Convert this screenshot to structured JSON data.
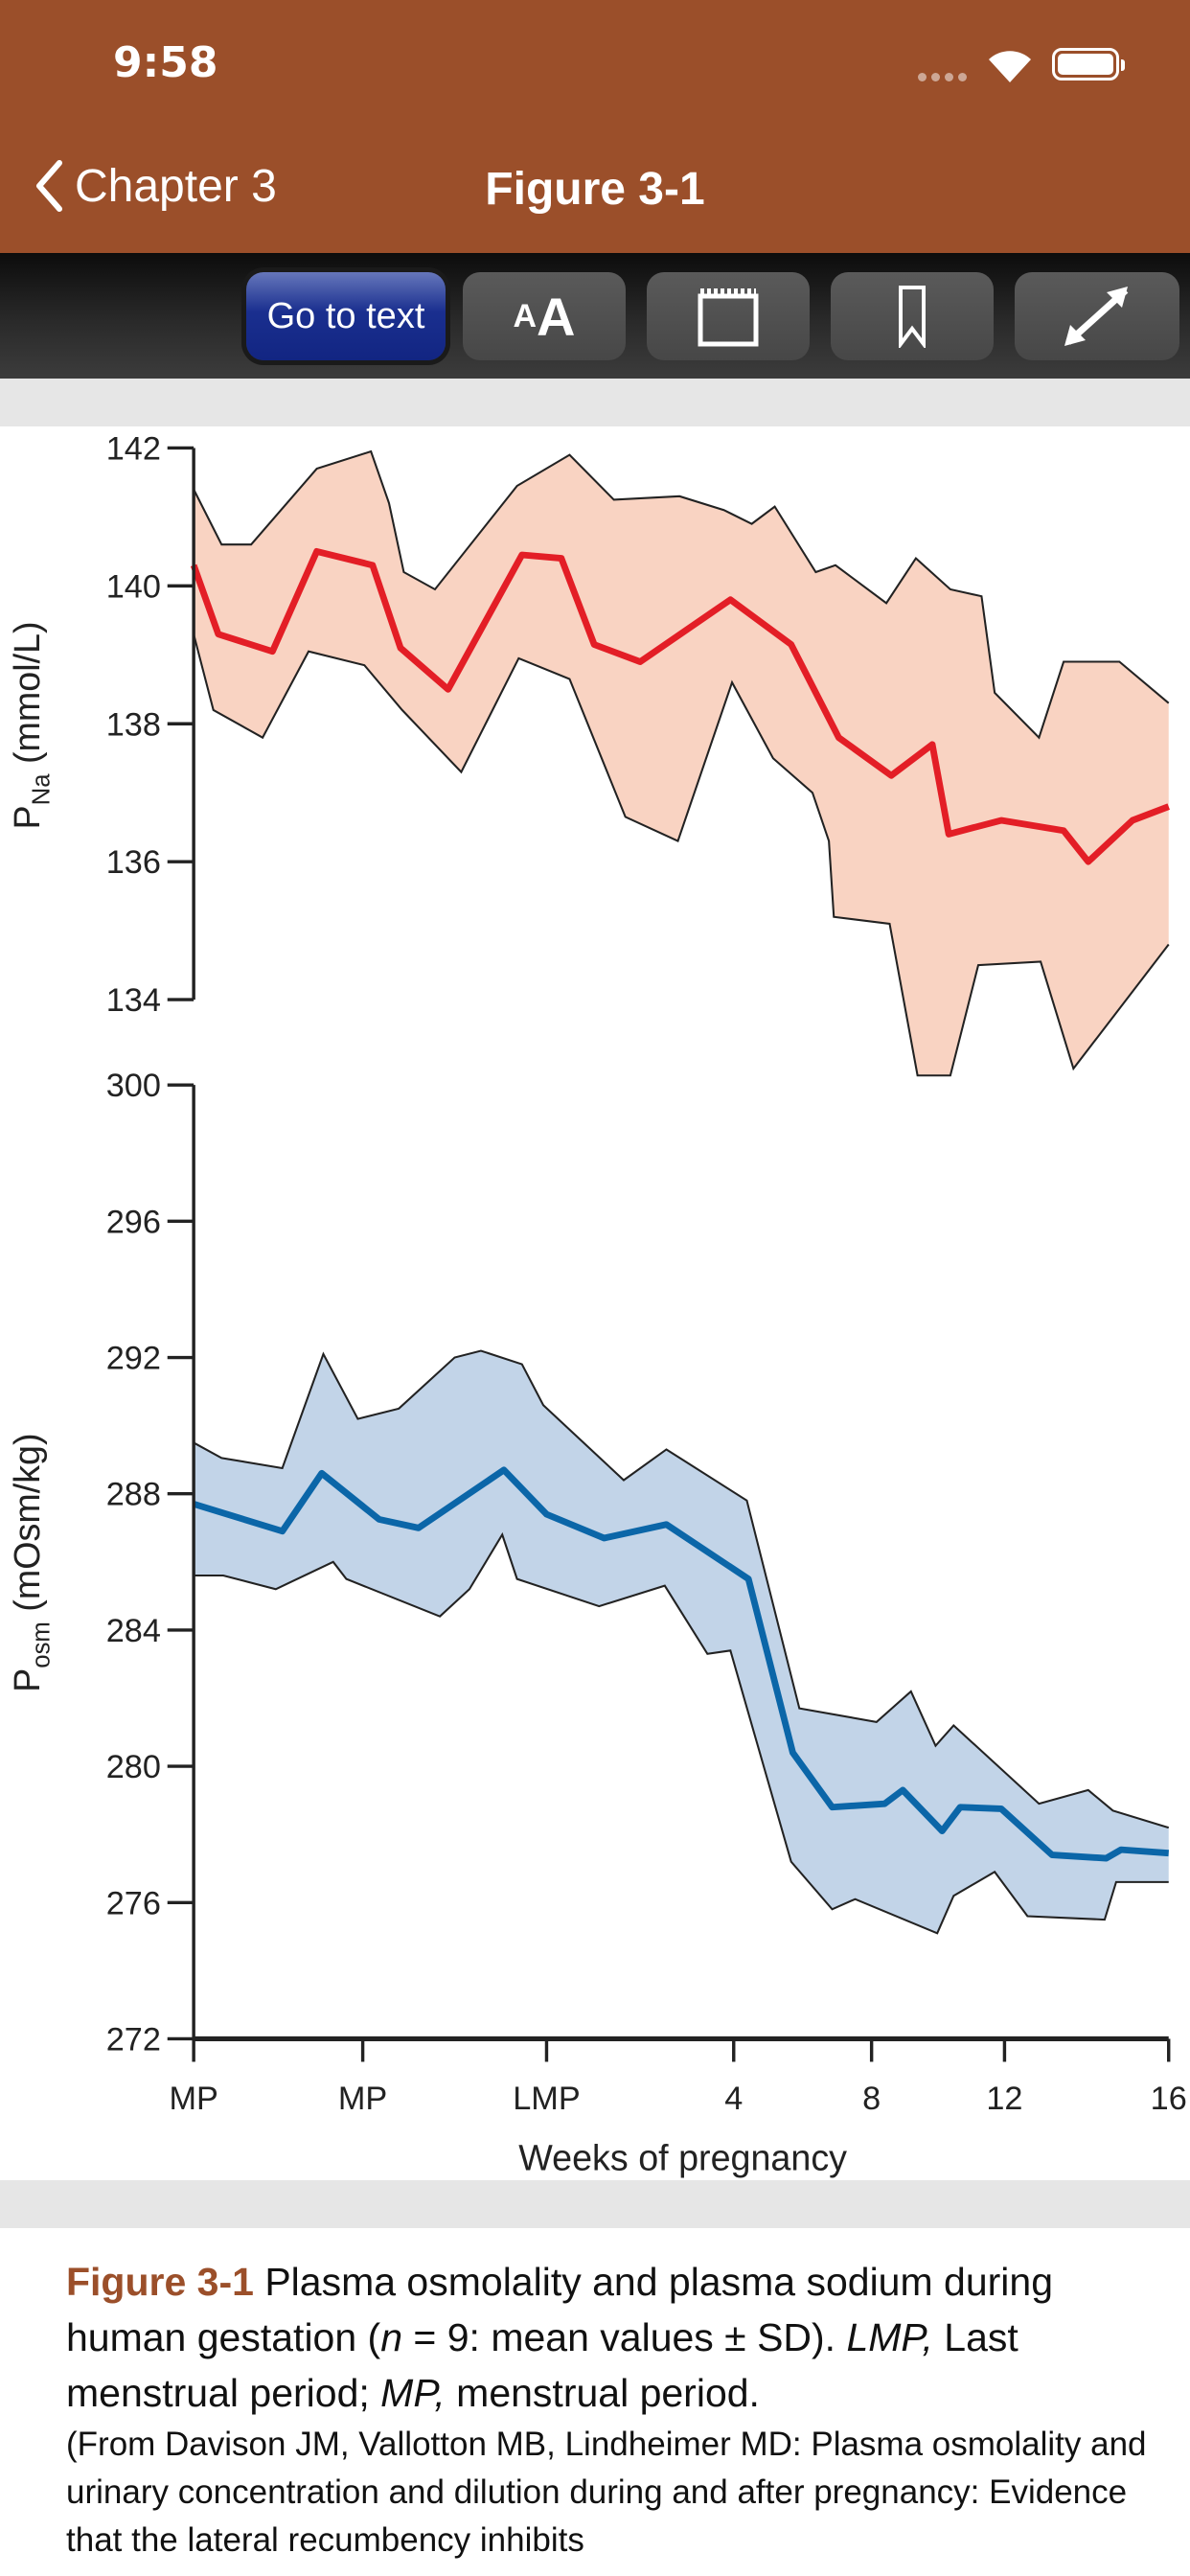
{
  "status_bar": {
    "time": "9:58"
  },
  "nav": {
    "back_label": "Chapter 3",
    "title": "Figure 3-1"
  },
  "toolbar": {
    "go_to_text": "Go to text",
    "font_small": "A",
    "font_large": "A"
  },
  "caption": {
    "figure_label": "Figure 3-1",
    "text1": " Plasma osmolality and plasma sodium during human gestation (",
    "n": "n",
    "text2": " = 9: mean values ± SD). ",
    "lmp": "LMP,",
    "text3": " Last menstrual period; ",
    "mp": "MP,",
    "text4": " menstrual period.",
    "source": "(From Davison JM, Vallotton MB, Lindheimer MD: Plasma osmolality and urinary concentration and dilution during and after pregnancy: Evidence that the lateral recumbency inhibits"
  },
  "colors": {
    "brand": "#9b4f2a",
    "sodium_line": "#e31e26",
    "sodium_band": "#f9d3c2",
    "osm_line": "#0b66a8",
    "osm_band": "#c2d4e8"
  },
  "chart_data": [
    {
      "type": "area",
      "title": "",
      "ylabel_main": "P",
      "ylabel_sub": "Na",
      "ylabel_unit": " (mmol/L)",
      "ylim": [
        134,
        142
      ],
      "yticks": [
        142,
        140,
        138,
        136,
        134
      ],
      "xlim": [
        0,
        59.4
      ],
      "mean": [
        [
          0,
          140.3
        ],
        [
          1.5,
          139.3
        ],
        [
          4.8,
          139.05
        ],
        [
          7.5,
          140.5
        ],
        [
          10.9,
          140.3
        ],
        [
          12.6,
          139.1
        ],
        [
          15.5,
          138.5
        ],
        [
          20,
          140.45
        ],
        [
          22.4,
          140.4
        ],
        [
          24.4,
          139.15
        ],
        [
          27.2,
          138.9
        ],
        [
          32.7,
          139.8
        ],
        [
          36.4,
          139.15
        ],
        [
          39.3,
          137.8
        ],
        [
          42.5,
          137.25
        ],
        [
          45,
          137.7
        ],
        [
          46,
          136.4
        ],
        [
          49.2,
          136.6
        ],
        [
          53,
          136.45
        ],
        [
          54.5,
          136.0
        ],
        [
          57.2,
          136.6
        ],
        [
          59.4,
          136.8
        ]
      ],
      "upper": [
        [
          0,
          141.4
        ],
        [
          1.7,
          140.6
        ],
        [
          3.5,
          140.6
        ],
        [
          7.5,
          141.7
        ],
        [
          10.8,
          141.95
        ],
        [
          11.9,
          141.2
        ],
        [
          12.8,
          140.2
        ],
        [
          14.7,
          139.95
        ],
        [
          19.7,
          141.45
        ],
        [
          22.9,
          141.9
        ],
        [
          25.6,
          141.25
        ],
        [
          29.6,
          141.3
        ],
        [
          32.3,
          141.1
        ],
        [
          34,
          140.9
        ],
        [
          35.4,
          141.15
        ],
        [
          37.9,
          140.2
        ],
        [
          39.1,
          140.3
        ],
        [
          42.2,
          139.75
        ],
        [
          44,
          140.4
        ],
        [
          46.1,
          139.95
        ],
        [
          48,
          139.85
        ],
        [
          48.8,
          138.45
        ],
        [
          51.5,
          137.8
        ],
        [
          53,
          138.9
        ],
        [
          56.4,
          138.9
        ],
        [
          59.4,
          138.3
        ]
      ],
      "lower": [
        [
          0,
          139.3
        ],
        [
          1.2,
          138.2
        ],
        [
          4.2,
          137.8
        ],
        [
          7,
          139.05
        ],
        [
          10.4,
          138.85
        ],
        [
          12.7,
          138.2
        ],
        [
          16.3,
          137.3
        ],
        [
          19.8,
          138.95
        ],
        [
          22.9,
          138.65
        ],
        [
          26.3,
          136.65
        ],
        [
          29.5,
          136.3
        ],
        [
          32.8,
          138.6
        ],
        [
          35.3,
          137.5
        ],
        [
          37.7,
          137.0
        ],
        [
          38.7,
          136.3
        ],
        [
          39,
          135.2
        ],
        [
          42.4,
          135.1
        ],
        [
          44.1,
          132.9
        ],
        [
          46.1,
          132.9
        ],
        [
          47.8,
          134.5
        ],
        [
          51.6,
          134.55
        ],
        [
          53.6,
          133.0
        ],
        [
          59.4,
          134.8
        ]
      ]
    },
    {
      "type": "area",
      "title": "",
      "ylabel_main": "P",
      "ylabel_sub": "osm",
      "ylabel_unit": " (mOsm/kg)",
      "ylim": [
        272,
        300
      ],
      "yticks": [
        300,
        296,
        292,
        288,
        284,
        280,
        276,
        272
      ],
      "xlabel": "Weeks of pregnancy",
      "xlim": [
        0,
        59.4
      ],
      "xticks": [
        {
          "v": 0,
          "label": "MP"
        },
        {
          "v": 10.3,
          "label": "MP"
        },
        {
          "v": 21.5,
          "label": "LMP"
        },
        {
          "v": 32.9,
          "label": "4"
        },
        {
          "v": 41.3,
          "label": "8"
        },
        {
          "v": 49.4,
          "label": "12"
        },
        {
          "v": 59.4,
          "label": "16"
        }
      ],
      "mean": [
        [
          0,
          287.7
        ],
        [
          5.4,
          286.9
        ],
        [
          7.8,
          288.6
        ],
        [
          11.3,
          287.25
        ],
        [
          13.7,
          287.0
        ],
        [
          18.9,
          288.7
        ],
        [
          21.5,
          287.4
        ],
        [
          25,
          286.7
        ],
        [
          28.8,
          287.1
        ],
        [
          33.8,
          285.5
        ],
        [
          36.5,
          280.4
        ],
        [
          38.9,
          278.8
        ],
        [
          42.1,
          278.9
        ],
        [
          43.2,
          279.3
        ],
        [
          45.6,
          278.1
        ],
        [
          46.7,
          278.8
        ],
        [
          49.2,
          278.75
        ],
        [
          52.3,
          277.4
        ],
        [
          55.6,
          277.3
        ],
        [
          56.5,
          277.55
        ],
        [
          59.4,
          277.45
        ]
      ],
      "upper": [
        [
          0,
          289.5
        ],
        [
          1.7,
          289.05
        ],
        [
          5.4,
          288.75
        ],
        [
          7.9,
          292.1
        ],
        [
          10,
          290.2
        ],
        [
          12.5,
          290.5
        ],
        [
          15.9,
          292.0
        ],
        [
          17.5,
          292.2
        ],
        [
          20,
          291.8
        ],
        [
          21.3,
          290.6
        ],
        [
          26.2,
          288.4
        ],
        [
          28.8,
          289.3
        ],
        [
          33.7,
          287.8
        ],
        [
          36.9,
          281.7
        ],
        [
          41.6,
          281.3
        ],
        [
          43.7,
          282.2
        ],
        [
          45.2,
          280.6
        ],
        [
          46.3,
          281.2
        ],
        [
          51.5,
          278.9
        ],
        [
          54.5,
          279.3
        ],
        [
          56,
          278.7
        ],
        [
          59.4,
          278.2
        ]
      ],
      "lower": [
        [
          0,
          285.6
        ],
        [
          1.8,
          285.6
        ],
        [
          5,
          285.2
        ],
        [
          8.5,
          286.0
        ],
        [
          9.3,
          285.5
        ],
        [
          15,
          284.4
        ],
        [
          16.8,
          285.2
        ],
        [
          18.8,
          286.8
        ],
        [
          19.7,
          285.5
        ],
        [
          24.7,
          284.7
        ],
        [
          28.7,
          285.3
        ],
        [
          31.3,
          283.3
        ],
        [
          32.7,
          283.4
        ],
        [
          36.4,
          277.2
        ],
        [
          38.9,
          275.8
        ],
        [
          40.3,
          276.1
        ],
        [
          45.3,
          275.1
        ],
        [
          46.3,
          276.2
        ],
        [
          48.8,
          276.9
        ],
        [
          50.8,
          275.6
        ],
        [
          55.5,
          275.5
        ],
        [
          56.2,
          276.6
        ],
        [
          59.4,
          276.6
        ]
      ]
    }
  ]
}
